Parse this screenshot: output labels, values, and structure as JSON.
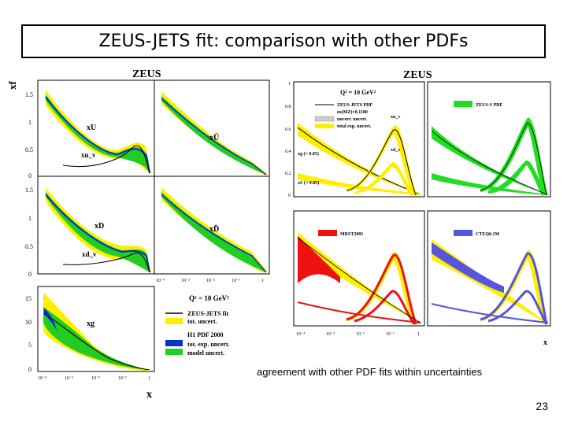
{
  "slide": {
    "title": "ZEUS-JETS fit: comparison with other PDFs",
    "caption": "agreement with other PDF fits within uncertainties",
    "page_number": "23"
  },
  "left_figure": {
    "header": "ZEUS",
    "y_axis_label": "xf",
    "x_axis_label": "x",
    "panel_labels": [
      "xU",
      "xu_v",
      "xŪ",
      "xD",
      "xd_v",
      "xD̄",
      "xg"
    ],
    "y_ticks_top": [
      "1.5",
      "1",
      "0.5",
      "0"
    ],
    "y_ticks_mid": [
      "1.5",
      "1",
      "0.5",
      "0"
    ],
    "y_ticks_bottom": [
      "15",
      "10",
      "5",
      "0"
    ],
    "x_ticks": [
      "10⁻⁴",
      "10⁻³",
      "10⁻²",
      "10⁻¹",
      "1"
    ],
    "q2_label": "Q² = 10 GeV²",
    "legend": [
      {
        "text": "ZEUS-JETS fit",
        "swatch": null
      },
      {
        "text": "tot. uncert.",
        "swatch": "#ffee00"
      },
      {
        "text": "H1 PDF 2000",
        "swatch": null
      },
      {
        "text": "tot. exp. uncert.",
        "swatch": "#0033cc"
      },
      {
        "text": "model uncert.",
        "swatch": "#22cc22"
      }
    ]
  },
  "right_figure": {
    "header": "ZEUS",
    "x_axis_label": "x",
    "q2_label": "Q² = 10 GeV²",
    "y_ticks": [
      "1",
      "0.8",
      "0.6",
      "0.4",
      "0.2",
      "0"
    ],
    "x_ticks": [
      "10⁻⁴",
      "10⁻³",
      "10⁻²",
      "10⁻¹",
      "1"
    ],
    "legend_main": [
      {
        "text": "ZEUS-JETS PDF"
      },
      {
        "text": "αs(MZ)=0.1180"
      },
      {
        "text": "uncorr. uncert."
      },
      {
        "text": "total exp. uncert."
      }
    ],
    "curve_labels": [
      "xu_v",
      "xd_v",
      "xg (× 0.05)",
      "xS (× 0.05)"
    ],
    "panels": [
      {
        "name": "ZEUS-S PDF",
        "color": "#22dd22"
      },
      {
        "name": "MRST2001",
        "color": "#ee1111"
      },
      {
        "name": "CTEQ6.1M",
        "color": "#5555dd"
      }
    ]
  }
}
